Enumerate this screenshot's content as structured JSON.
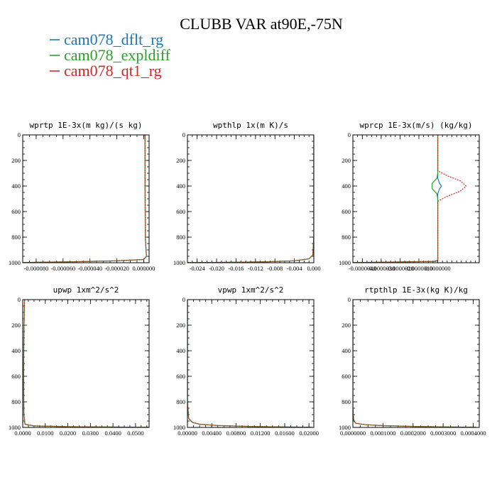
{
  "figure": {
    "title": "CLUBB VAR at90E,-75N"
  },
  "legend": [
    {
      "name": "cam078_dflt_rg",
      "color": "#1f77b4"
    },
    {
      "name": "cam078_expldiff",
      "color": "#2ca02c"
    },
    {
      "name": "cam078_qt1_rg",
      "color": "#d62728"
    }
  ],
  "chart_data": [
    {
      "type": "line",
      "title": "wprtp  1E-3x(m kg)/(s kg)",
      "xlim": [
        -9e-05,
        4e-06
      ],
      "ylim": [
        1000,
        0
      ],
      "xticks": [
        -8e-05,
        -6e-05,
        -4e-05,
        -2e-05,
        0
      ],
      "xtick_labels": [
        "-0.000080",
        "-0.000060",
        "-0.000040",
        "-0.000020",
        "0.000000"
      ],
      "yticks": [
        0,
        200,
        400,
        600,
        800,
        1000
      ],
      "ytick_labels": [
        "0",
        "200",
        "400",
        "600",
        "800",
        "1000"
      ],
      "series": [
        {
          "name": "cam078_dflt_rg",
          "x": [
            1e-06,
            1e-06,
            1.2e-06,
            2e-06,
            0,
            -2e-05,
            -5e-05,
            -7.5e-05,
            -9e-05
          ],
          "y": [
            0,
            400,
            800,
            950,
            975,
            985,
            992,
            996,
            999
          ]
        },
        {
          "name": "cam078_expldiff",
          "x": [
            1e-06,
            1e-06,
            1.2e-06,
            2e-06,
            0,
            -2e-05,
            -5e-05,
            -7.5e-05,
            -9e-05
          ],
          "y": [
            0,
            400,
            800,
            950,
            975,
            985,
            992,
            996,
            999
          ]
        },
        {
          "name": "cam078_qt1_rg",
          "x": [
            1e-06,
            1e-06,
            1.2e-06,
            2e-06,
            0,
            -2e-05,
            -5e-05,
            -7.5e-05,
            -9e-05
          ],
          "y": [
            0,
            400,
            800,
            950,
            975,
            985,
            992,
            996,
            999
          ]
        }
      ]
    },
    {
      "type": "line",
      "title": "wpthlp  1x(m K)/s",
      "xlim": [
        -0.026,
        0.0
      ],
      "ylim": [
        1000,
        0
      ],
      "xticks": [
        -0.024,
        -0.02,
        -0.016,
        -0.012,
        -0.008,
        -0.004,
        0.0
      ],
      "xtick_labels": [
        "-0.024",
        "-0.020",
        "-0.016",
        "-0.012",
        "-0.008",
        "-0.004",
        "0.000"
      ],
      "yticks": [
        0,
        200,
        400,
        600,
        800,
        1000
      ],
      "ytick_labels": [
        "0",
        "200",
        "400",
        "600",
        "800",
        "1000"
      ],
      "series": [
        {
          "name": "cam078_dflt_rg",
          "x": [
            0,
            0,
            0,
            -0.0002,
            -0.001,
            -0.004,
            -0.01,
            -0.018,
            -0.026
          ],
          "y": [
            0,
            400,
            800,
            940,
            970,
            985,
            993,
            997,
            999
          ]
        },
        {
          "name": "cam078_expldiff",
          "x": [
            0,
            0,
            0,
            -0.0002,
            -0.001,
            -0.004,
            -0.01,
            -0.018,
            -0.026
          ],
          "y": [
            0,
            400,
            800,
            940,
            970,
            985,
            993,
            997,
            999
          ]
        },
        {
          "name": "cam078_qt1_rg",
          "x": [
            0,
            0,
            0,
            -0.0002,
            -0.001,
            -0.004,
            -0.01,
            -0.018,
            -0.026
          ],
          "y": [
            0,
            400,
            800,
            940,
            970,
            985,
            993,
            997,
            999
          ]
        }
      ]
    },
    {
      "type": "line",
      "title": "wprcp  1E-3x(m/s) (kg/kg)",
      "xlim": [
        -4.5e-06,
        2.2e-06
      ],
      "ylim": [
        1000,
        0
      ],
      "xticks": [
        -4e-06,
        -3e-06,
        -2e-06,
        -1e-06,
        0
      ],
      "xtick_labels": [
        "-0.0000040",
        "-0.0000030",
        "-0.0000020",
        "-0.0000010",
        "0.0000000"
      ],
      "yticks": [
        0,
        200,
        400,
        600,
        800,
        1000
      ],
      "ytick_labels": [
        "0",
        "200",
        "400",
        "600",
        "800",
        "1000"
      ],
      "series": [
        {
          "name": "cam078_dflt_rg",
          "x": [
            0,
            0,
            0,
            1e-07,
            2e-07,
            1e-07,
            0,
            0,
            0,
            -2e-07,
            -4.5e-06
          ],
          "y": [
            0,
            300,
            340,
            380,
            400,
            420,
            460,
            900,
            980,
            990,
            999
          ]
        },
        {
          "name": "cam078_expldiff",
          "x": [
            0,
            0,
            -5e-08,
            -3e-07,
            -3e-07,
            -5e-08,
            0,
            0,
            0,
            -1e-07,
            -4.5e-06
          ],
          "y": [
            0,
            300,
            340,
            380,
            420,
            460,
            500,
            900,
            980,
            990,
            999
          ]
        },
        {
          "name": "cam078_qt1_rg",
          "x": [
            0,
            0,
            5e-07,
            1.2e-06,
            1.5e-06,
            1.2e-06,
            5e-07,
            0,
            0,
            -2e-07,
            -4.5e-06
          ],
          "y": [
            0,
            280,
            320,
            360,
            400,
            440,
            480,
            520,
            980,
            990,
            999
          ]
        }
      ]
    },
    {
      "type": "line",
      "title": "upwp  1xm^2/s^2",
      "xlim": [
        0.0,
        0.056
      ],
      "ylim": [
        1000,
        0
      ],
      "xticks": [
        0.0,
        0.01,
        0.02,
        0.03,
        0.04,
        0.05
      ],
      "xtick_labels": [
        "0.0000",
        "0.0100",
        "0.0200",
        "0.0300",
        "0.0400",
        "0.0500"
      ],
      "yticks": [
        0,
        200,
        400,
        600,
        800,
        1000
      ],
      "ytick_labels": [
        "0",
        "200",
        "400",
        "600",
        "800",
        "1000"
      ],
      "series": [
        {
          "name": "cam078_dflt_rg",
          "x": [
            0.0008,
            0.0005,
            0.0004,
            0.0005,
            0.001,
            0.005,
            0.02,
            0.04,
            0.056
          ],
          "y": [
            0,
            300,
            600,
            900,
            975,
            988,
            994,
            997,
            999
          ]
        },
        {
          "name": "cam078_expldiff",
          "x": [
            0.0008,
            0.0005,
            0.0004,
            0.0005,
            0.001,
            0.005,
            0.02,
            0.04,
            0.056
          ],
          "y": [
            0,
            300,
            600,
            900,
            975,
            988,
            994,
            997,
            999
          ]
        },
        {
          "name": "cam078_qt1_rg",
          "x": [
            0.0008,
            0.0005,
            0.0004,
            0.0005,
            0.001,
            0.005,
            0.02,
            0.04,
            0.056
          ],
          "y": [
            0,
            300,
            600,
            900,
            975,
            988,
            994,
            997,
            999
          ]
        }
      ]
    },
    {
      "type": "line",
      "title": "vpwp  1xm^2/s^2",
      "xlim": [
        0.0,
        0.0208
      ],
      "ylim": [
        1000,
        0
      ],
      "xticks": [
        0.0,
        0.004,
        0.008,
        0.012,
        0.016,
        0.02
      ],
      "xtick_labels": [
        "0.00000",
        "0.00400",
        "0.00800",
        "0.01200",
        "0.01600",
        "0.02000"
      ],
      "yticks": [
        0,
        200,
        400,
        600,
        800,
        1000
      ],
      "ytick_labels": [
        "0",
        "200",
        "400",
        "600",
        "800",
        "1000"
      ],
      "series": [
        {
          "name": "cam078_dflt_rg",
          "x": [
            0,
            0,
            0.0002,
            0.0008,
            0.002,
            0.005,
            0.01,
            0.015,
            0.0205
          ],
          "y": [
            0,
            800,
            930,
            960,
            975,
            985,
            992,
            996,
            999
          ]
        },
        {
          "name": "cam078_expldiff",
          "x": [
            0,
            0,
            0.0002,
            0.0008,
            0.002,
            0.005,
            0.01,
            0.015,
            0.0205
          ],
          "y": [
            0,
            800,
            930,
            960,
            975,
            985,
            992,
            996,
            999
          ]
        },
        {
          "name": "cam078_qt1_rg",
          "x": [
            0,
            0,
            0.0002,
            0.0008,
            0.002,
            0.005,
            0.01,
            0.015,
            0.0205
          ],
          "y": [
            0,
            800,
            930,
            960,
            975,
            985,
            992,
            996,
            999
          ]
        }
      ]
    },
    {
      "type": "line",
      "title": "rtpthlp  1E-3x(kg K)/kg",
      "xlim": [
        0.0,
        0.00042
      ],
      "ylim": [
        1000,
        0
      ],
      "xticks": [
        0.0,
        0.0001,
        0.0002,
        0.0003,
        0.0004
      ],
      "xtick_labels": [
        "0.0000000",
        "0.0001000",
        "0.0002000",
        "0.0003000",
        "0.0004000"
      ],
      "yticks": [
        0,
        200,
        400,
        600,
        800,
        1000
      ],
      "ytick_labels": [
        "0",
        "200",
        "400",
        "600",
        "800",
        "1000"
      ],
      "series": [
        {
          "name": "cam078_dflt_rg",
          "x": [
            0,
            0,
            3e-06,
            1e-05,
            4e-05,
            0.0001,
            0.0002,
            0.0003,
            0.00041
          ],
          "y": [
            0,
            850,
            950,
            968,
            978,
            986,
            992,
            996,
            999
          ]
        },
        {
          "name": "cam078_expldiff",
          "x": [
            0,
            0,
            3e-06,
            1e-05,
            4e-05,
            0.0001,
            0.0002,
            0.0003,
            0.00041
          ],
          "y": [
            0,
            850,
            950,
            968,
            978,
            986,
            992,
            996,
            999
          ]
        },
        {
          "name": "cam078_qt1_rg",
          "x": [
            0,
            0,
            3e-06,
            1e-05,
            4e-05,
            0.0001,
            0.0002,
            0.0003,
            0.00041
          ],
          "y": [
            0,
            850,
            950,
            968,
            978,
            986,
            992,
            996,
            999
          ]
        }
      ]
    }
  ]
}
